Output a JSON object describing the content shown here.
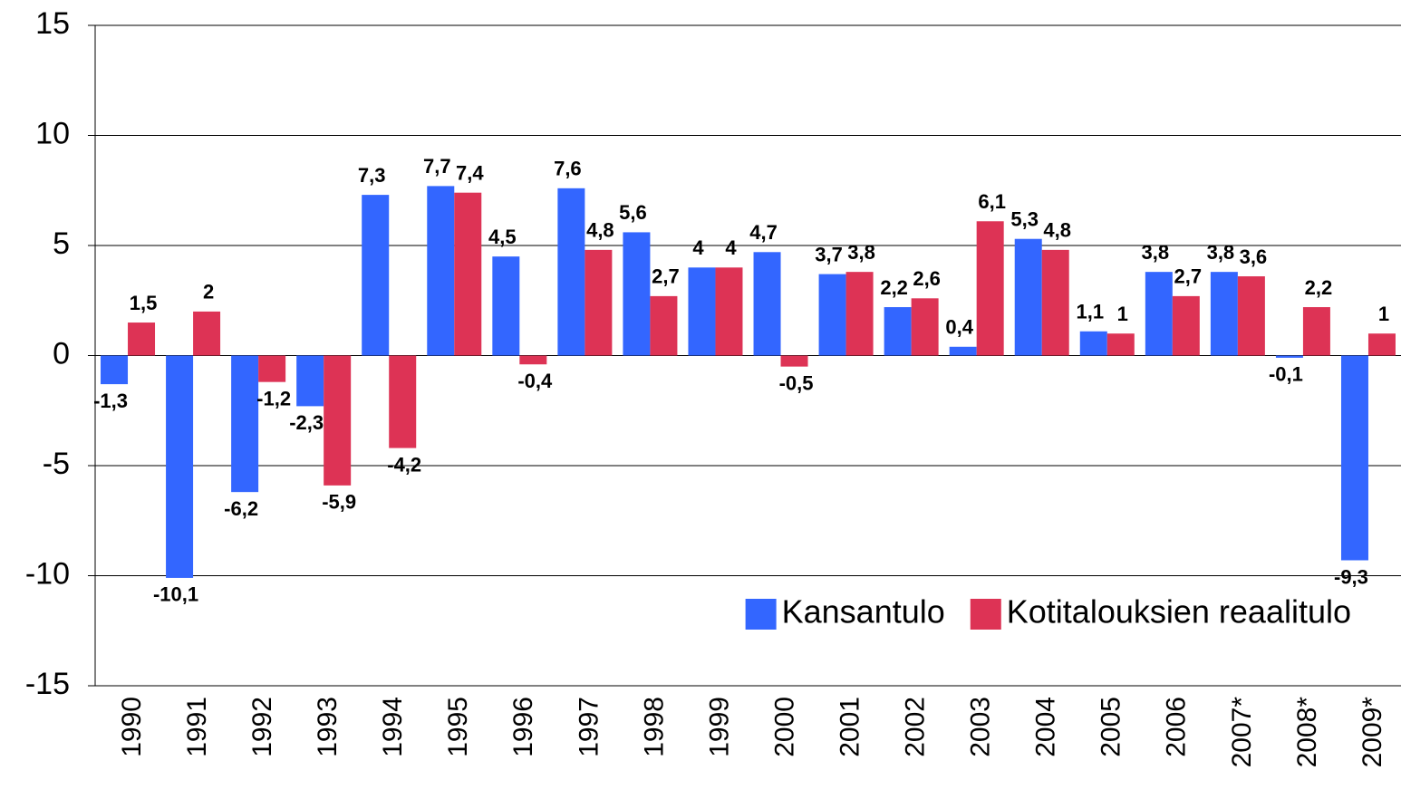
{
  "chart_data": {
    "type": "bar",
    "categories": [
      "1990",
      "1991",
      "1992",
      "1993",
      "1994",
      "1995",
      "1996",
      "1997",
      "1998",
      "1999",
      "2000",
      "2001",
      "2002",
      "2003",
      "2004",
      "2005",
      "2006",
      "2007*",
      "2008*",
      "2009*"
    ],
    "series": [
      {
        "name": "Kansantulo",
        "color": "#3366ff",
        "values": [
          -1.3,
          -10.1,
          -6.2,
          -2.3,
          7.3,
          7.7,
          4.5,
          7.6,
          5.6,
          4,
          4.7,
          3.7,
          2.2,
          0.4,
          5.3,
          1.1,
          3.8,
          3.8,
          -0.1,
          -9.3
        ],
        "value_labels": [
          "-1,3",
          "-10,1",
          "-6,2",
          "-2,3",
          "7,3",
          "7,7",
          "4,5",
          "7,6",
          "5,6",
          "4",
          "4,7",
          "3,7",
          "2,2",
          "0,4",
          "5,3",
          "1,1",
          "3,8",
          "3,8",
          "-0,1",
          "-9,3"
        ]
      },
      {
        "name": "Kotitalouksien reaalitulo",
        "color": "#dd3355",
        "values": [
          1.5,
          2,
          -1.2,
          -5.9,
          -4.2,
          7.4,
          -0.4,
          4.8,
          2.7,
          4,
          -0.5,
          3.8,
          2.6,
          6.1,
          4.8,
          1,
          2.7,
          3.6,
          2.2,
          1
        ],
        "value_labels": [
          "1,5",
          "2",
          "-1,2",
          "-5,9",
          "-4,2",
          "7,4",
          "-0,4",
          "4,8",
          "2,7",
          "4",
          "-0,5",
          "3,8",
          "2,6",
          "6,1",
          "4,8",
          "1",
          "2,7",
          "3,6",
          "2,2",
          "1"
        ]
      }
    ],
    "ylim": [
      -15,
      15
    ],
    "yticks": [
      15,
      10,
      5,
      0,
      -5,
      -10,
      -15
    ],
    "grid": true,
    "legend": "lower right"
  }
}
